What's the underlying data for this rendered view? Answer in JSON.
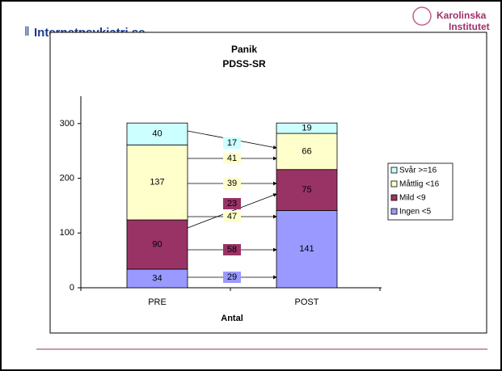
{
  "header": {
    "left_logo": "Internetpsykiatri.se",
    "right_logo_line1": "Karolinska",
    "right_logo_line2": "Institutet"
  },
  "chart_data": {
    "type": "bar",
    "stacked": true,
    "title": "Panik",
    "subtitle": "PDSS-SR",
    "x_label": "Antal",
    "categories": [
      "PRE",
      "POST"
    ],
    "series": [
      {
        "name": "Ingen <5",
        "color": "#9999ff",
        "values": [
          34,
          141
        ]
      },
      {
        "name": "Mild <9",
        "color": "#993366",
        "values": [
          90,
          75
        ]
      },
      {
        "name": "Måttlig <16",
        "color": "#ffffcc",
        "values": [
          137,
          66
        ]
      },
      {
        "name": "Svår >=16",
        "color": "#ccffff",
        "values": [
          40,
          19
        ]
      }
    ],
    "transitions": [
      {
        "value": 17,
        "color": "#ccffff"
      },
      {
        "value": 41,
        "color": "#ffffcc"
      },
      {
        "value": 39,
        "color": "#ffffcc"
      },
      {
        "value": 23,
        "color": "#993366"
      },
      {
        "value": 47,
        "color": "#ffffcc"
      },
      {
        "value": 58,
        "color": "#993366"
      },
      {
        "value": 29,
        "color": "#9999ff"
      }
    ],
    "ylim": [
      0,
      350
    ],
    "yticks": [
      0,
      100,
      200,
      300
    ],
    "legend": "right"
  }
}
